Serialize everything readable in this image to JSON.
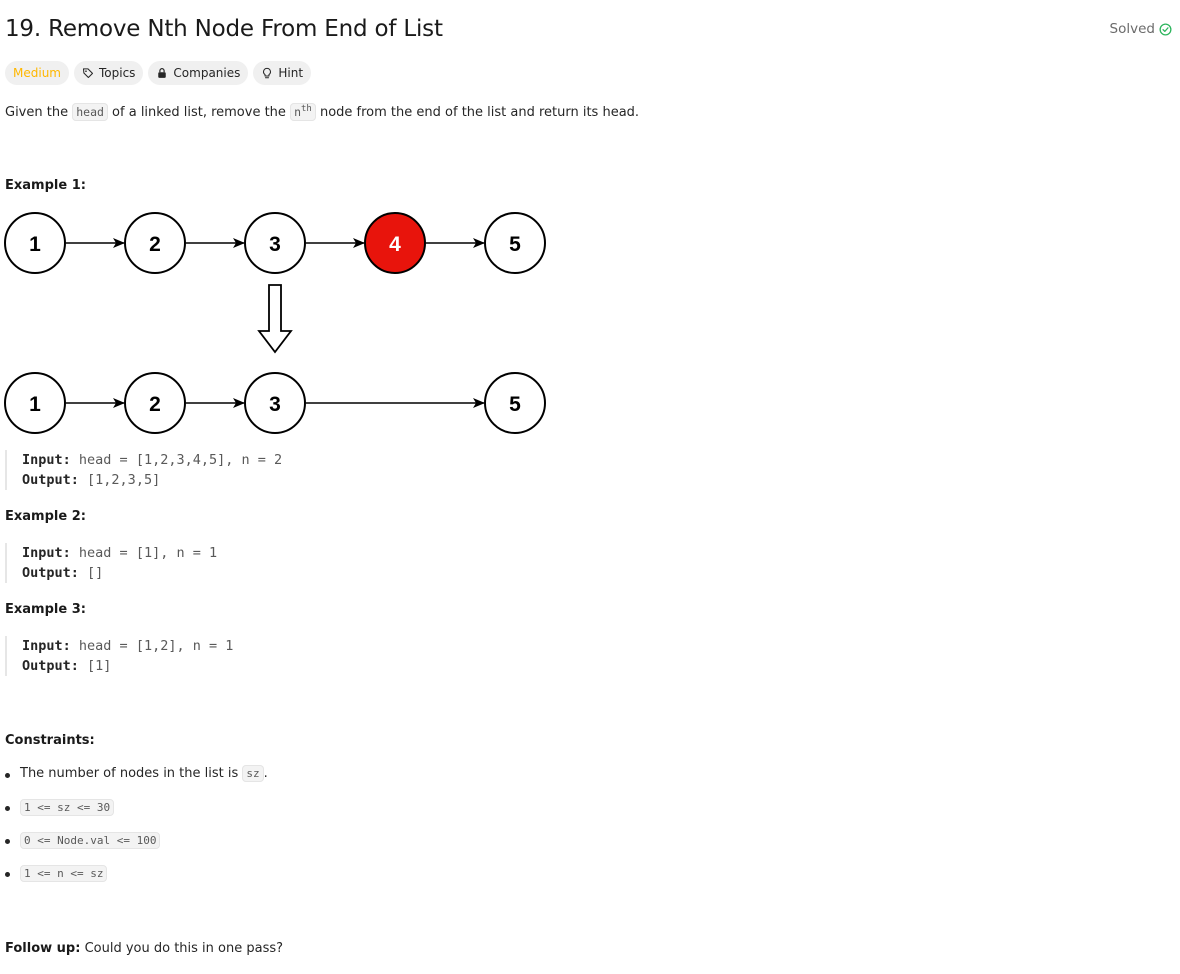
{
  "problem": {
    "title": "19. Remove Nth Node From End of List",
    "status": "Solved"
  },
  "tags": {
    "difficulty": "Medium",
    "topics": "Topics",
    "companies": "Companies",
    "hint": "Hint"
  },
  "description": {
    "part1": "Given the ",
    "code1": "head",
    "part2": " of a linked list, remove the ",
    "code2_base": "n",
    "code2_sup": "th",
    "part3": " node from the end of the list and return its head."
  },
  "diagram": {
    "before": [
      "1",
      "2",
      "3",
      "4",
      "5"
    ],
    "after": [
      "1",
      "2",
      "3",
      "5"
    ],
    "highlight_color": "#e8140c"
  },
  "examples": [
    {
      "heading": "Example 1:",
      "input_label": "Input:",
      "input_value": "head = [1,2,3,4,5], n = 2",
      "output_label": "Output:",
      "output_value": "[1,2,3,5]"
    },
    {
      "heading": "Example 2:",
      "input_label": "Input:",
      "input_value": "head = [1], n = 1",
      "output_label": "Output:",
      "output_value": "[]"
    },
    {
      "heading": "Example 3:",
      "input_label": "Input:",
      "input_value": "head = [1,2], n = 1",
      "output_label": "Output:",
      "output_value": "[1]"
    }
  ],
  "constraints": {
    "heading": "Constraints:",
    "item1_text": "The number of nodes in the list is ",
    "item1_code": "sz",
    "item1_end": ".",
    "item2_code": "1 <= sz <= 30",
    "item3_code": "0 <= Node.val <= 100",
    "item4_code": "1 <= n <= sz"
  },
  "followup": {
    "label": "Follow up:",
    "text": " Could you do this in one pass?"
  },
  "colors": {
    "solved_green": "#2db55d",
    "medium_amber": "#ffb700"
  }
}
